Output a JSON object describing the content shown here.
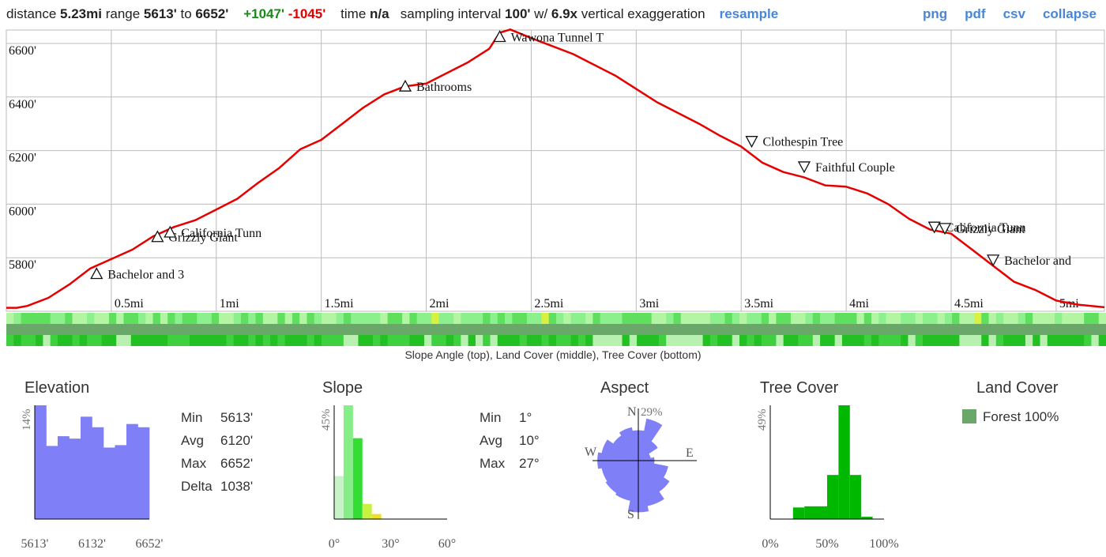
{
  "summary": {
    "distance_label": "distance ",
    "distance": "5.23mi",
    "range_label": " range ",
    "range_min": "5613'",
    "range_to": " to ",
    "range_max": "6652'",
    "gain": "+1047'",
    "loss": "-1045'",
    "time_label": "time ",
    "time": "n/a",
    "sampling_label": "sampling interval ",
    "sampling": "100'",
    "exag_label": " w/ ",
    "exaggeration": "6.9x",
    "exag_suffix": " vertical exaggeration"
  },
  "links": {
    "resample": "resample",
    "png": "png",
    "pdf": "pdf",
    "csv": "csv",
    "collapse": "collapse"
  },
  "strip_caption": "Slope Angle (top), Land Cover (middle), Tree Cover (bottom)",
  "colors": {
    "profile_line": "#e60000",
    "histogram": "#7f7ff7",
    "tree_cover": "#00b800",
    "land_cover_forest": "#6aa86a",
    "aspect": "#7f7ff7"
  },
  "chart_data": [
    {
      "type": "line",
      "xlim": [
        0,
        5.23
      ],
      "ylim": [
        5600,
        6650
      ],
      "x_ticks": [
        0.5,
        1,
        1.5,
        2,
        2.5,
        3,
        3.5,
        4,
        4.5,
        5
      ],
      "x_tick_labels": [
        "0.5mi",
        "1mi",
        "1.5mi",
        "2mi",
        "2.5mi",
        "3mi",
        "3.5mi",
        "4mi",
        "4.5mi",
        "5mi"
      ],
      "y_ticks": [
        5800,
        6000,
        6200,
        6400,
        6600
      ],
      "y_tick_labels": [
        "5800'",
        "6000'",
        "6200'",
        "6400'",
        "6600'"
      ],
      "x": [
        0,
        0.05,
        0.1,
        0.2,
        0.3,
        0.4,
        0.5,
        0.6,
        0.7,
        0.8,
        0.9,
        1.0,
        1.1,
        1.2,
        1.3,
        1.4,
        1.5,
        1.6,
        1.7,
        1.8,
        1.9,
        2.0,
        2.1,
        2.2,
        2.3,
        2.35,
        2.4,
        2.5,
        2.6,
        2.7,
        2.8,
        2.9,
        3.0,
        3.1,
        3.2,
        3.3,
        3.4,
        3.5,
        3.6,
        3.7,
        3.8,
        3.9,
        4.0,
        4.1,
        4.2,
        4.3,
        4.4,
        4.5,
        4.6,
        4.7,
        4.8,
        4.9,
        5.0,
        5.1,
        5.23
      ],
      "y": [
        5613,
        5613,
        5620,
        5650,
        5700,
        5760,
        5795,
        5830,
        5880,
        5915,
        5940,
        5980,
        6020,
        6080,
        6135,
        6205,
        6240,
        6300,
        6360,
        6410,
        6440,
        6450,
        6490,
        6530,
        6580,
        6640,
        6652,
        6620,
        6590,
        6560,
        6520,
        6480,
        6430,
        6380,
        6340,
        6300,
        6255,
        6215,
        6155,
        6120,
        6100,
        6070,
        6065,
        6040,
        6000,
        5945,
        5905,
        5890,
        5830,
        5770,
        5710,
        5680,
        5640,
        5625,
        5615
      ],
      "annotations": [
        {
          "label": "Bachelor and 3",
          "x": 0.43,
          "y": 5740,
          "marker": "up"
        },
        {
          "label": "Grizzly Giant",
          "x": 0.72,
          "y": 5878,
          "marker": "up"
        },
        {
          "label": "California Tunn",
          "x": 0.78,
          "y": 5895,
          "marker": "up"
        },
        {
          "label": "Bathrooms",
          "x": 1.9,
          "y": 6440,
          "marker": "up"
        },
        {
          "label": "Wawona Tunnel T",
          "x": 2.35,
          "y": 6625,
          "marker": "up"
        },
        {
          "label": "Clothespin Tree",
          "x": 3.55,
          "y": 6235,
          "marker": "down"
        },
        {
          "label": "Faithful Couple",
          "x": 3.8,
          "y": 6140,
          "marker": "down"
        },
        {
          "label": "California Tunn",
          "x": 4.42,
          "y": 5915,
          "marker": "down"
        },
        {
          "label": "Grizzly Giant",
          "x": 4.47,
          "y": 5910,
          "marker": "down"
        },
        {
          "label": "Bachelor and",
          "x": 4.7,
          "y": 5792,
          "marker": "down"
        }
      ]
    },
    {
      "type": "bar",
      "title": "Elevation",
      "ylabel": "14%",
      "x_tick_labels": [
        "5613'",
        "6132'",
        "6652'"
      ],
      "values": [
        14,
        9.0,
        10.2,
        9.9,
        12.6,
        11.3,
        8.8,
        9.1,
        11.7,
        11.3
      ],
      "ylim": [
        0,
        14
      ]
    },
    {
      "type": "bar",
      "title": "Slope",
      "ylabel": "45%",
      "x_tick_labels": [
        "0°",
        "30°",
        "60°"
      ],
      "xlim": [
        0,
        60
      ],
      "bins": [
        {
          "from": 0,
          "to": 5,
          "value": 17,
          "color": "#c8f2c8"
        },
        {
          "from": 5,
          "to": 10,
          "value": 45,
          "color": "#86ee86"
        },
        {
          "from": 10,
          "to": 15,
          "value": 32,
          "color": "#33dd33"
        },
        {
          "from": 15,
          "to": 20,
          "value": 6,
          "color": "#c8f240"
        },
        {
          "from": 20,
          "to": 25,
          "value": 2,
          "color": "#f0e020"
        }
      ]
    },
    {
      "type": "pie",
      "title": "Aspect",
      "max_label": "29%",
      "direction_labels": {
        "n": "N",
        "e": "E",
        "s": "S",
        "w": "W"
      },
      "sectors": [
        {
          "dir": "N",
          "value": 17
        },
        {
          "dir": "NNE",
          "value": 24
        },
        {
          "dir": "NE",
          "value": 13
        },
        {
          "dir": "ENE",
          "value": 7
        },
        {
          "dir": "E",
          "value": 9
        },
        {
          "dir": "ESE",
          "value": 17
        },
        {
          "dir": "SE",
          "value": 21
        },
        {
          "dir": "SSE",
          "value": 26
        },
        {
          "dir": "S",
          "value": 29
        },
        {
          "dir": "SSW",
          "value": 23
        },
        {
          "dir": "SW",
          "value": 22
        },
        {
          "dir": "WSW",
          "value": 21
        },
        {
          "dir": "W",
          "value": 23
        },
        {
          "dir": "WNW",
          "value": 21
        },
        {
          "dir": "NW",
          "value": 17
        },
        {
          "dir": "NNW",
          "value": 19
        }
      ]
    },
    {
      "type": "bar",
      "title": "Tree Cover",
      "ylabel": "49%",
      "x_tick_labels": [
        "0%",
        "50%",
        "100%"
      ],
      "xlim": [
        0,
        100
      ],
      "bins": [
        {
          "from": 20,
          "to": 30,
          "value": 5
        },
        {
          "from": 30,
          "to": 50,
          "value": 5.5
        },
        {
          "from": 50,
          "to": 60,
          "value": 19
        },
        {
          "from": 60,
          "to": 70,
          "value": 49
        },
        {
          "from": 70,
          "to": 80,
          "value": 19
        },
        {
          "from": 80,
          "to": 90,
          "value": 1
        }
      ]
    }
  ],
  "elevation_stats": [
    {
      "label": "Min",
      "value": "5613'"
    },
    {
      "label": "Avg",
      "value": "6120'"
    },
    {
      "label": "Max",
      "value": "6652'"
    },
    {
      "label": "Delta",
      "value": "1038'"
    }
  ],
  "slope_stats": [
    {
      "label": "Min",
      "value": "1°"
    },
    {
      "label": "Avg",
      "value": "10°"
    },
    {
      "label": "Max",
      "value": "27°"
    }
  ],
  "land_cover": {
    "title": "Land Cover",
    "legend": "Forest 100%"
  }
}
